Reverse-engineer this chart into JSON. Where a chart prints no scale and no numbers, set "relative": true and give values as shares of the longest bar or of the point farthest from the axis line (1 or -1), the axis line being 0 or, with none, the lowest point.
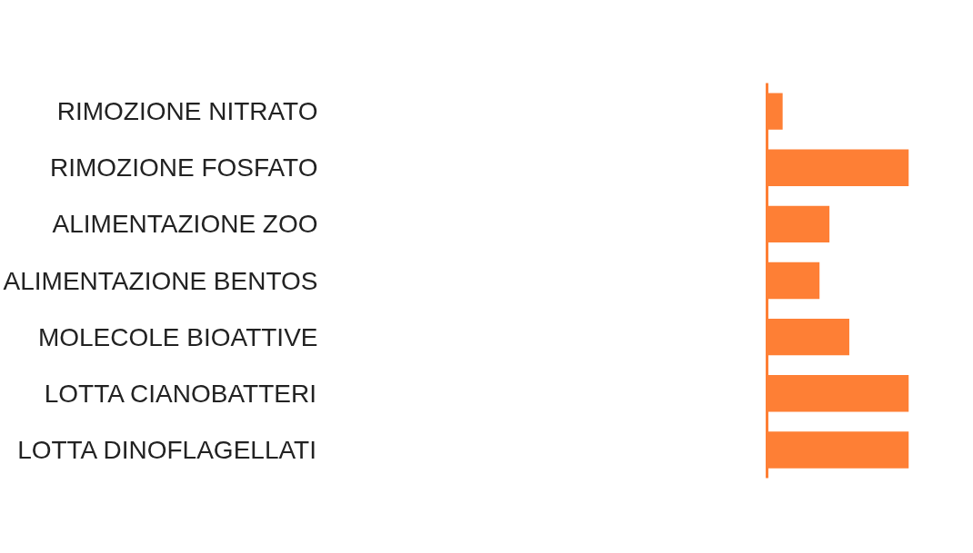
{
  "chart_data": {
    "type": "bar",
    "orientation": "horizontal",
    "relative": true,
    "categories": [
      "RIMOZIONE NITRATO",
      "RIMOZIONE FOSFATO",
      "ALIMENTAZIONE ZOO",
      "ALIMENTAZIONE BENTOS",
      "MOLECOLE BIOATTIVE",
      "LOTTA CIANOBATTERI",
      "LOTTA DINOFLAGELLATI"
    ],
    "values": [
      0.11,
      1,
      0.44,
      0.37,
      0.58,
      1,
      1
    ],
    "color": "#fe7f35",
    "grid": false
  }
}
